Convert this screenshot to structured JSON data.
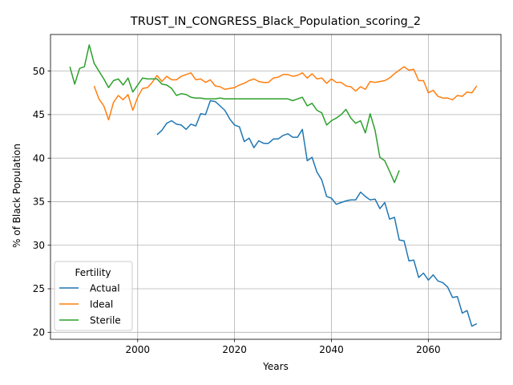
{
  "chart_data": {
    "type": "line",
    "title": "TRUST_IN_CONGRESS_Black_Population_scoring_2",
    "xlabel": "Years",
    "ylabel": "% of Black Population",
    "xlim": [
      1982,
      2075
    ],
    "ylim": [
      19.2,
      54.2
    ],
    "xticks": [
      2000,
      2020,
      2040,
      2060
    ],
    "yticks": [
      20,
      25,
      30,
      35,
      40,
      45,
      50
    ],
    "grid": true,
    "legend": {
      "title": "Fertility",
      "placement": "lower-left"
    },
    "series": [
      {
        "name": "Actual",
        "color": "#1f77b4",
        "x": [
          2004,
          2005,
          2006,
          2007,
          2008,
          2009,
          2010,
          2011,
          2012,
          2013,
          2014,
          2015,
          2016,
          2017,
          2018,
          2019,
          2020,
          2021,
          2022,
          2023,
          2024,
          2025,
          2026,
          2027,
          2028,
          2029,
          2030,
          2031,
          2032,
          2033,
          2034,
          2035,
          2036,
          2037,
          2038,
          2039,
          2040,
          2041,
          2042,
          2043,
          2044,
          2045,
          2046,
          2047,
          2048,
          2049,
          2050,
          2051,
          2052,
          2053,
          2054,
          2055,
          2056,
          2057,
          2058,
          2059,
          2060,
          2061,
          2062,
          2063,
          2064,
          2065,
          2066,
          2067,
          2068,
          2069,
          2070
        ],
        "y": [
          42.7,
          43.2,
          44.0,
          44.3,
          43.9,
          43.8,
          43.3,
          43.9,
          43.7,
          45.1,
          45.0,
          46.6,
          46.5,
          46.0,
          45.5,
          44.5,
          43.8,
          43.6,
          41.9,
          42.3,
          41.2,
          42.0,
          41.7,
          41.7,
          42.2,
          42.2,
          42.6,
          42.8,
          42.4,
          42.4,
          43.3,
          39.7,
          40.1,
          38.4,
          37.5,
          35.6,
          35.4,
          34.7,
          34.9,
          35.1,
          35.2,
          35.2,
          36.1,
          35.6,
          35.2,
          35.3,
          34.2,
          34.9,
          33.0,
          33.2,
          30.6,
          30.5,
          28.2,
          28.3,
          26.3,
          26.8,
          26.0,
          26.6,
          25.9,
          25.7,
          25.2,
          24.0,
          24.1,
          22.2,
          22.5,
          20.7,
          21.0
        ]
      },
      {
        "name": "Ideal",
        "color": "#ff7f0e",
        "x": [
          1991,
          1992,
          1993,
          1994,
          1995,
          1996,
          1997,
          1998,
          1999,
          2000,
          2001,
          2002,
          2003,
          2004,
          2005,
          2006,
          2007,
          2008,
          2009,
          2010,
          2011,
          2012,
          2013,
          2014,
          2015,
          2016,
          2017,
          2018,
          2019,
          2020,
          2021,
          2022,
          2023,
          2024,
          2025,
          2026,
          2027,
          2028,
          2029,
          2030,
          2031,
          2032,
          2033,
          2034,
          2035,
          2036,
          2037,
          2038,
          2039,
          2040,
          2041,
          2042,
          2043,
          2044,
          2045,
          2046,
          2047,
          2048,
          2049,
          2050,
          2051,
          2052,
          2053,
          2054,
          2055,
          2056,
          2057,
          2058,
          2059,
          2060,
          2061,
          2062,
          2063,
          2064,
          2065,
          2066,
          2067,
          2068,
          2069,
          2070
        ],
        "y": [
          48.3,
          46.8,
          46.0,
          44.4,
          46.4,
          47.2,
          46.7,
          47.3,
          45.5,
          47.0,
          48.0,
          48.1,
          48.7,
          49.5,
          48.8,
          49.4,
          49.0,
          49.0,
          49.4,
          49.6,
          49.8,
          49.0,
          49.1,
          48.7,
          49.0,
          48.3,
          48.2,
          47.9,
          48.0,
          48.1,
          48.4,
          48.6,
          48.9,
          49.1,
          48.8,
          48.7,
          48.7,
          49.2,
          49.3,
          49.6,
          49.6,
          49.4,
          49.5,
          49.8,
          49.2,
          49.7,
          49.1,
          49.2,
          48.6,
          49.1,
          48.7,
          48.7,
          48.3,
          48.2,
          47.7,
          48.2,
          47.9,
          48.8,
          48.7,
          48.8,
          48.9,
          49.2,
          49.7,
          50.1,
          50.5,
          50.1,
          50.2,
          48.9,
          48.9,
          47.5,
          47.8,
          47.1,
          46.9,
          46.9,
          46.7,
          47.2,
          47.1,
          47.6,
          47.5,
          48.3
        ]
      },
      {
        "name": "Sterile",
        "color": "#2ca02c",
        "x": [
          1986,
          1987,
          1988,
          1989,
          1990,
          1991,
          1992,
          1993,
          1994,
          1995,
          1996,
          1997,
          1998,
          1999,
          2000,
          2001,
          2002,
          2003,
          2004,
          2005,
          2006,
          2007,
          2008,
          2009,
          2010,
          2011,
          2012,
          2013,
          2014,
          2015,
          2016,
          2017,
          2018,
          2019,
          2020,
          2021,
          2022,
          2023,
          2024,
          2025,
          2026,
          2027,
          2028,
          2029,
          2030,
          2031,
          2032,
          2033,
          2034,
          2035,
          2036,
          2037,
          2038,
          2039,
          2040,
          2041,
          2042,
          2043,
          2044,
          2045,
          2046,
          2047,
          2048,
          2049,
          2050,
          2051,
          2052,
          2053,
          2054
        ],
        "y": [
          50.5,
          48.5,
          50.3,
          50.5,
          53.0,
          50.9,
          50.0,
          49.1,
          48.1,
          48.9,
          49.1,
          48.4,
          49.2,
          47.6,
          48.4,
          49.2,
          49.1,
          49.1,
          49.1,
          48.5,
          48.4,
          48.0,
          47.2,
          47.4,
          47.3,
          47.0,
          46.9,
          46.9,
          46.8,
          46.8,
          46.8,
          46.9,
          46.8,
          46.8,
          46.8,
          46.8,
          46.8,
          46.8,
          46.8,
          46.8,
          46.8,
          46.8,
          46.8,
          46.8,
          46.8,
          46.8,
          46.6,
          46.8,
          47.0,
          46.0,
          46.3,
          45.5,
          45.2,
          43.8,
          44.3,
          44.6,
          45.0,
          45.6,
          44.6,
          44.0,
          44.3,
          42.9,
          45.1,
          43.2,
          40.1,
          39.7,
          38.5,
          37.2,
          38.6
        ]
      }
    ]
  }
}
